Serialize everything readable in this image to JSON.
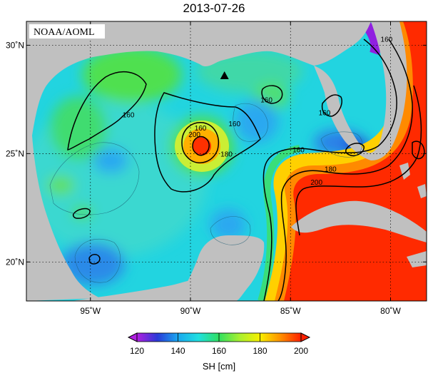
{
  "title": "2013-07-26",
  "source_label": "NOAA/AOML",
  "map": {
    "lon_range": [
      -98.2,
      -78.2
    ],
    "lat_range": [
      18.2,
      31.1
    ],
    "x_ticks": [
      {
        "value": -95,
        "label": "95˚W"
      },
      {
        "value": -90,
        "label": "90˚W"
      },
      {
        "value": -85,
        "label": "85˚W"
      },
      {
        "value": -80,
        "label": "80˚W"
      }
    ],
    "y_ticks": [
      {
        "value": 30,
        "label": "30˚N"
      },
      {
        "value": 25,
        "label": "25˚N"
      },
      {
        "value": 20,
        "label": "20˚N"
      }
    ],
    "contour_labels": [
      {
        "text": "160",
        "lon": -93.1,
        "lat": 26.8
      },
      {
        "text": "160",
        "lon": -89.5,
        "lat": 26.2
      },
      {
        "text": "160",
        "lon": -87.8,
        "lat": 26.4
      },
      {
        "text": "160",
        "lon": -86.2,
        "lat": 27.5
      },
      {
        "text": "160",
        "lon": -83.3,
        "lat": 26.9
      },
      {
        "text": "160",
        "lon": -80.2,
        "lat": 30.3
      },
      {
        "text": "160",
        "lon": -84.6,
        "lat": 25.2
      },
      {
        "text": "180",
        "lon": -83.0,
        "lat": 24.3
      },
      {
        "text": "180",
        "lon": -88.2,
        "lat": 25.0
      },
      {
        "text": "200",
        "lon": -89.8,
        "lat": 25.9
      },
      {
        "text": "200",
        "lon": -83.7,
        "lat": 23.7
      }
    ],
    "marker": {
      "name": "triangle-marker",
      "lon": -88.3,
      "lat": 28.6
    }
  },
  "colorbar": {
    "title": "SH [cm]",
    "ticks": [
      "120",
      "140",
      "160",
      "180",
      "200"
    ],
    "colors": [
      "#b01fe0",
      "#2a3ad8",
      "#1aa8f0",
      "#20e0e0",
      "#30e060",
      "#a8f030",
      "#f8f000",
      "#ff9000",
      "#ff2000"
    ]
  },
  "colors": {
    "land": "#c0c0c0",
    "frame": "#000000"
  }
}
